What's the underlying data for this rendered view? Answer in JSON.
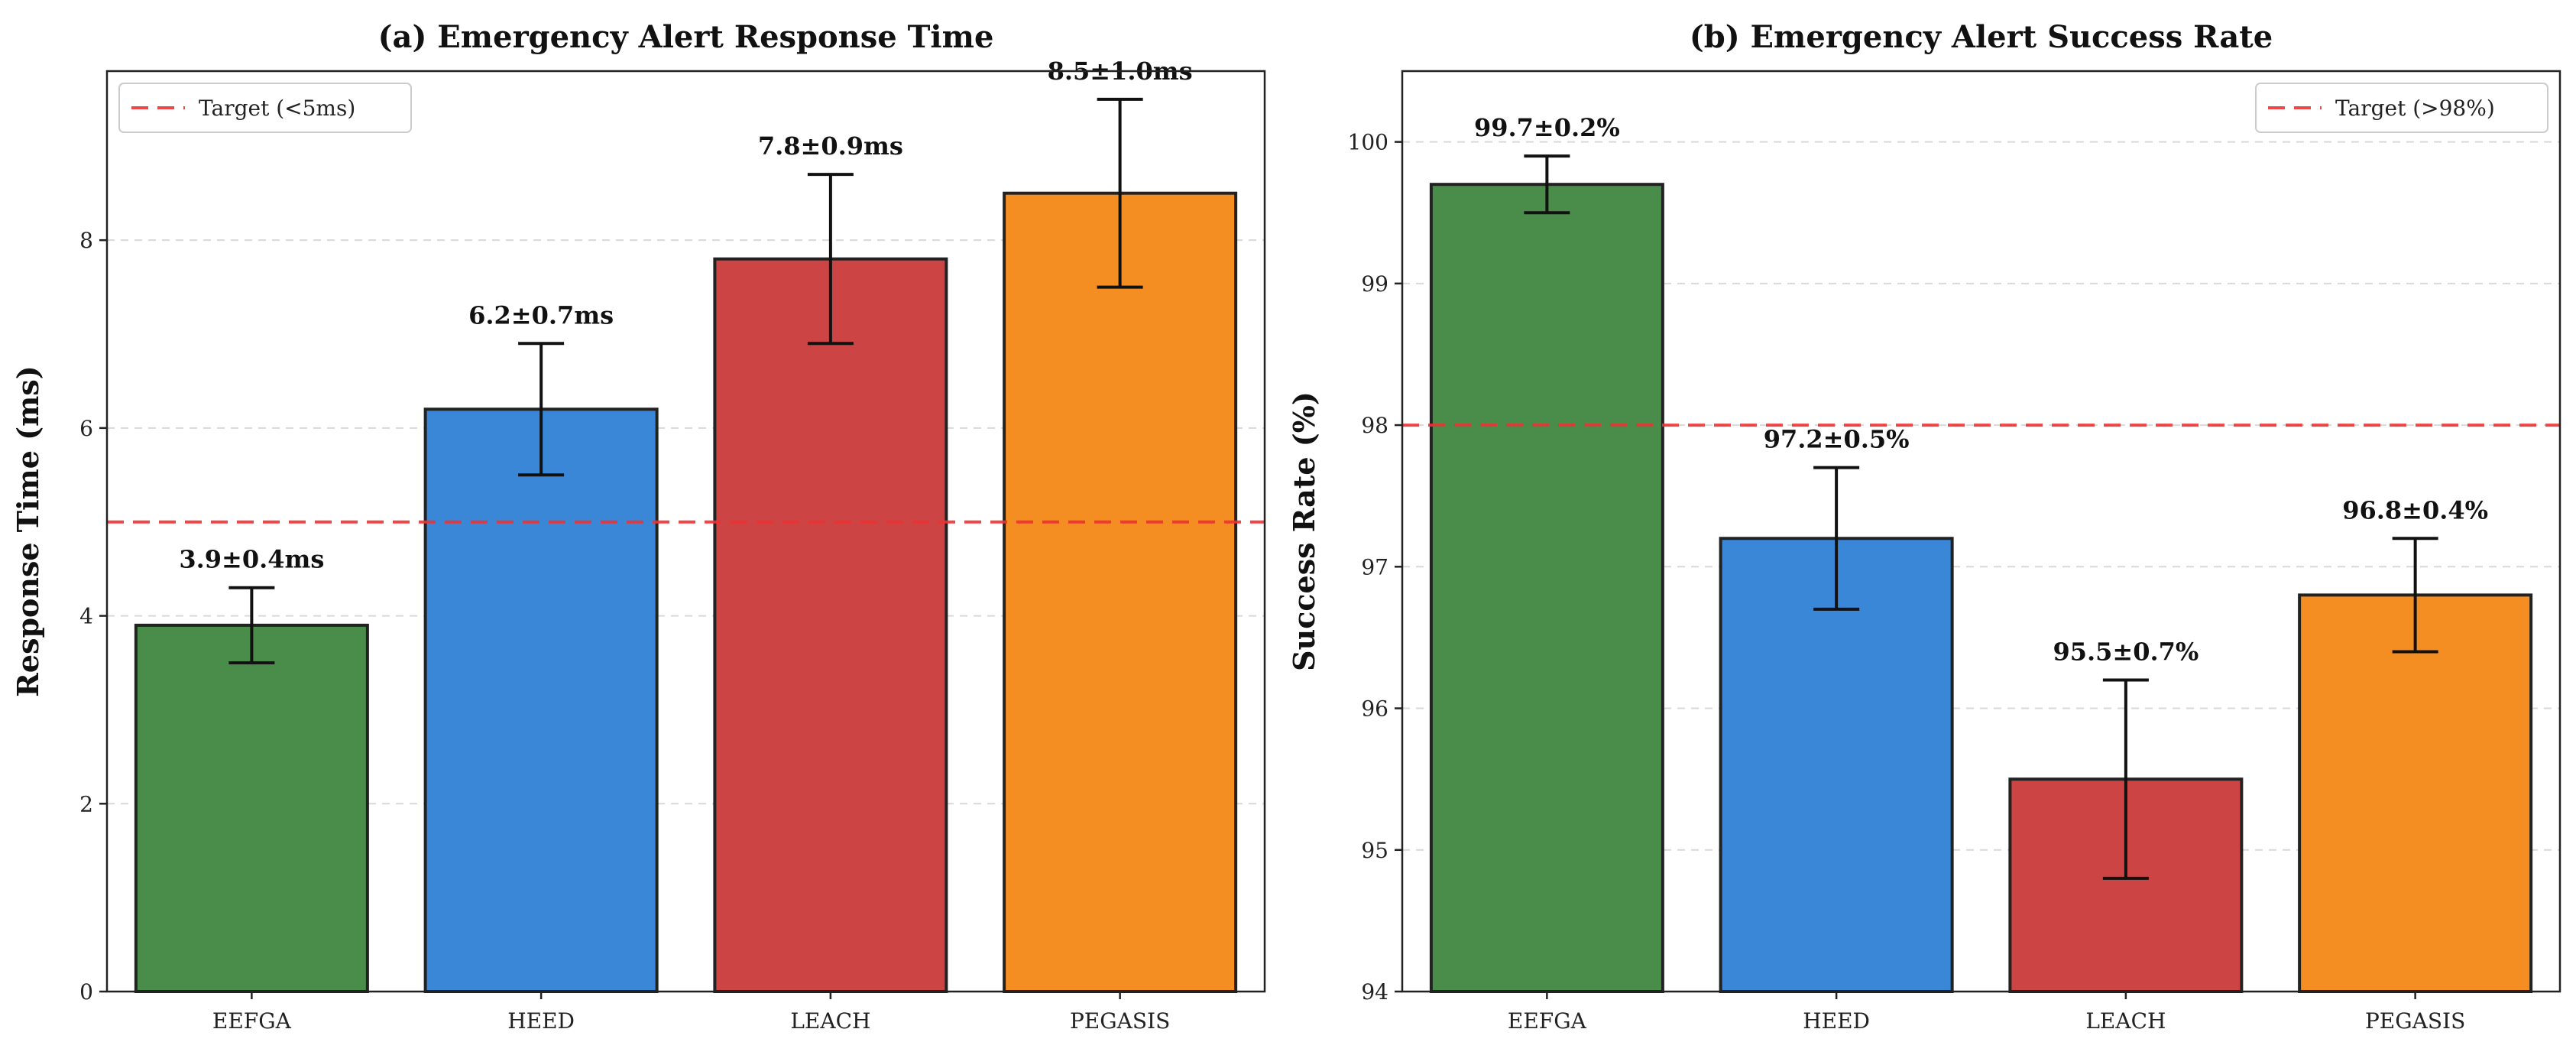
{
  "chart_data": [
    {
      "type": "bar",
      "title": "(a) Emergency Alert Response Time",
      "ylabel": "Response Time (ms)",
      "xlabel": "",
      "categories": [
        "EEFGA",
        "HEED",
        "LEACH",
        "PEGASIS"
      ],
      "values": [
        3.9,
        6.2,
        7.8,
        8.5
      ],
      "errors": [
        0.4,
        0.7,
        0.9,
        1.0
      ],
      "value_labels": [
        "3.9±0.4ms",
        "6.2±0.7ms",
        "7.8±0.9ms",
        "8.5±1.0ms"
      ],
      "colors": [
        "#4a8c4a",
        "#3a87d8",
        "#cc4444",
        "#f58e22"
      ],
      "ylim": [
        0,
        9.8
      ],
      "yticks": [
        0,
        2,
        4,
        6,
        8
      ],
      "grid": true,
      "reference_line": {
        "value": 5,
        "label": "Target (<5ms)",
        "color": "#ee3333"
      },
      "legend": {
        "entries": [
          "Target (<5ms)"
        ],
        "placement": "top-left"
      }
    },
    {
      "type": "bar",
      "title": "(b) Emergency Alert Success Rate",
      "ylabel": "Success Rate (%)",
      "xlabel": "",
      "categories": [
        "EEFGA",
        "HEED",
        "LEACH",
        "PEGASIS"
      ],
      "values": [
        99.7,
        97.2,
        95.5,
        96.8
      ],
      "errors": [
        0.2,
        0.5,
        0.7,
        0.4
      ],
      "value_labels": [
        "99.7±0.2%",
        "97.2±0.5%",
        "95.5±0.7%",
        "96.8±0.4%"
      ],
      "colors": [
        "#4a8c4a",
        "#3a87d8",
        "#cc4444",
        "#f58e22"
      ],
      "ylim": [
        94,
        100.5
      ],
      "yticks": [
        94,
        95,
        96,
        97,
        98,
        99,
        100
      ],
      "grid": true,
      "reference_line": {
        "value": 98,
        "label": "Target (>98%)",
        "color": "#ee3333"
      },
      "legend": {
        "entries": [
          "Target (>98%)"
        ],
        "placement": "top-right"
      }
    }
  ]
}
